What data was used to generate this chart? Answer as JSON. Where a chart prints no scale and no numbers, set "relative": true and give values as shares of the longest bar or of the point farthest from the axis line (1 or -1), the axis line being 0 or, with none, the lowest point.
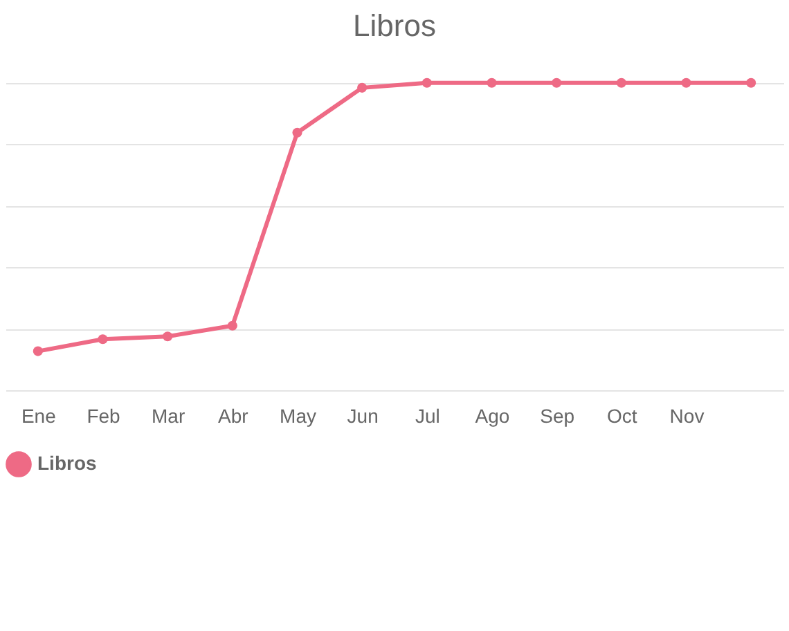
{
  "chart_data": {
    "type": "line",
    "title": "Libros",
    "categories": [
      "Ene",
      "Feb",
      "Mar",
      "Abr",
      "May",
      "Jun",
      "Jul",
      "Ago",
      "Sep",
      "Oct",
      "Nov",
      null
    ],
    "series": [
      {
        "name": "Libros",
        "color": "#ee6a85",
        "values": [
          0.127,
          0.166,
          0.175,
          0.21,
          0.838,
          0.984,
          1,
          1,
          1,
          1,
          1,
          1
        ]
      }
    ],
    "relative": true,
    "grid": "y",
    "legend": "bottom",
    "marker": "circle"
  }
}
